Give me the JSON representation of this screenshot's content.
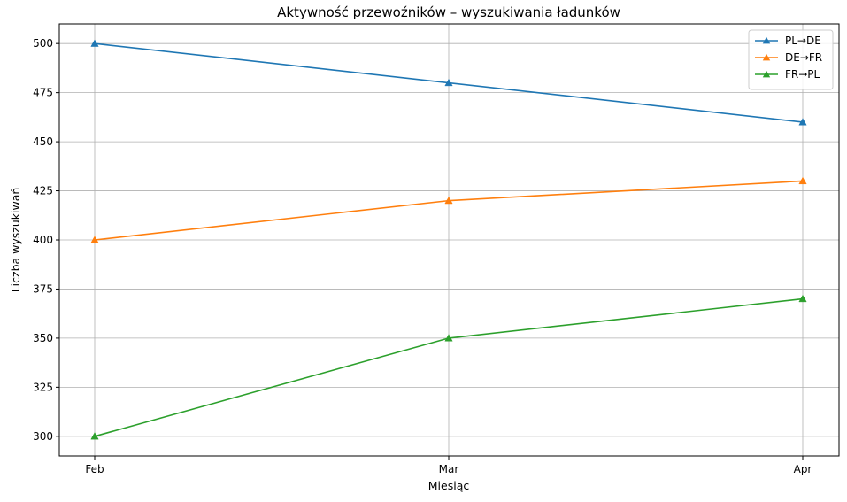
{
  "chart_data": {
    "type": "line",
    "title": "Aktywność przewoźników – wyszukiwania ładunków",
    "xlabel": "Miesiąc",
    "ylabel": "Liczba wyszukiwań",
    "categories": [
      "Feb",
      "Mar",
      "Apr"
    ],
    "ylim": [
      290,
      510
    ],
    "yticks": [
      300,
      325,
      350,
      375,
      400,
      425,
      450,
      475,
      500
    ],
    "grid": true,
    "legend_position": "top-right",
    "marker": "triangle",
    "series": [
      {
        "name": "PL→DE",
        "color": "#1f77b4",
        "values": [
          500,
          480,
          460
        ]
      },
      {
        "name": "DE→FR",
        "color": "#ff7f0e",
        "values": [
          400,
          420,
          430
        ]
      },
      {
        "name": "FR→PL",
        "color": "#2ca02c",
        "values": [
          300,
          350,
          370
        ]
      }
    ]
  }
}
